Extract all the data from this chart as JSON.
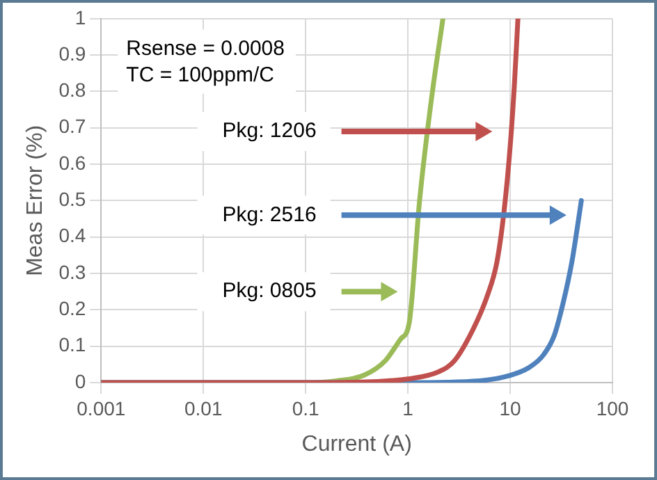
{
  "chart_data": {
    "type": "line",
    "xlabel": "Current (A)",
    "ylabel": "Meas Error (%)",
    "log": "x",
    "xlim": [
      0.001,
      100
    ],
    "xticks": [
      0.001,
      0.01,
      0.1,
      1,
      10,
      100
    ],
    "ylim": [
      0,
      1
    ],
    "yticks": [
      0,
      0.1,
      0.2,
      0.3,
      0.4,
      0.5,
      0.6,
      0.7,
      0.8,
      0.9,
      1
    ],
    "grid": true,
    "legend": false,
    "marker": "none",
    "line_style": "solid",
    "series": [
      {
        "color": "#c0504d",
        "x": [
          0.001,
          0.1,
          0.5,
          1,
          2,
          2.85,
          4.4,
          6,
          7.4,
          8.7,
          10,
          11,
          11.9
        ],
        "values": [
          0,
          0,
          0.003,
          0.01,
          0.03,
          0.06,
          0.15,
          0.24,
          0.33,
          0.47,
          0.65,
          0.82,
          1
        ]
      },
      {
        "color": "#4f81bd",
        "x": [
          0.001,
          0.95,
          5,
          10,
          15,
          21,
          27,
          33,
          40,
          45,
          49.6
        ],
        "values": [
          0,
          0,
          0.005,
          0.02,
          0.04,
          0.075,
          0.13,
          0.22,
          0.33,
          0.42,
          0.5
        ]
      },
      {
        "color": "#9bbb59",
        "x": [
          0.001,
          0.1,
          0.2,
          0.37,
          0.6,
          0.85,
          1.03,
          1.3,
          1.7,
          2.2
        ],
        "values": [
          0,
          0,
          0.005,
          0.02,
          0.06,
          0.12,
          0.165,
          0.5,
          0.78,
          1
        ]
      }
    ],
    "annotations": [
      "Rsense = 0.0008\nTC = 100ppm/C",
      "Pkg: 1206",
      "Pkg: 2516",
      "Pkg: 0805"
    ]
  }
}
